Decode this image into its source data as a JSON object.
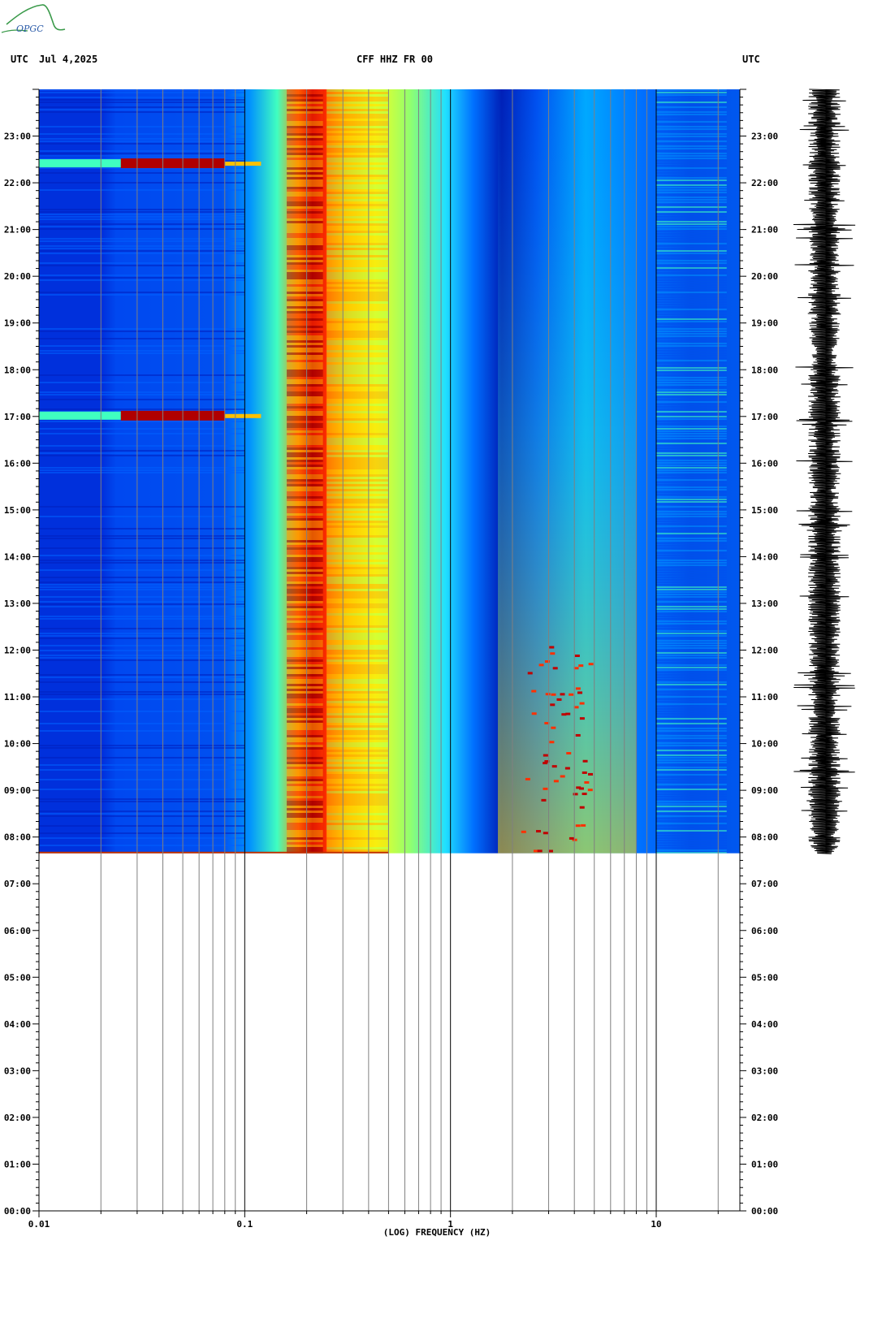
{
  "header": {
    "left_tz": "UTC",
    "date": "Jul 4,2025",
    "station": "CFF HHZ FR 00",
    "right_tz": "UTC"
  },
  "logo": {
    "text": "OPGC"
  },
  "chart_data": {
    "type": "heatmap",
    "subtype": "spectrogram",
    "xlabel": "(LOG) FREQUENCY (HZ)",
    "x_scale": "log",
    "xlim": [
      0.01,
      25
    ],
    "x_tick_labels": [
      "0.01",
      "0.1",
      "1",
      "10"
    ],
    "x_major_ticks": [
      0.01,
      0.1,
      1,
      10
    ],
    "x_minor_ticks": [
      0.02,
      0.03,
      0.04,
      0.05,
      0.06,
      0.07,
      0.08,
      0.09,
      0.2,
      0.3,
      0.4,
      0.5,
      0.6,
      0.7,
      0.8,
      0.9,
      2,
      3,
      4,
      5,
      6,
      7,
      8,
      9,
      20
    ],
    "y_tick_labels": [
      "00:00",
      "01:00",
      "02:00",
      "03:00",
      "04:00",
      "05:00",
      "06:00",
      "07:00",
      "08:00",
      "09:00",
      "10:00",
      "11:00",
      "12:00",
      "13:00",
      "14:00",
      "15:00",
      "16:00",
      "17:00",
      "18:00",
      "19:00",
      "20:00",
      "21:00",
      "22:00",
      "23:00"
    ],
    "ylim_hours": [
      0,
      24
    ],
    "data_start_hour": 7.65,
    "colormap": [
      "#0000a0",
      "#0030e0",
      "#0080ff",
      "#00d0ff",
      "#40ffc0",
      "#c0ff40",
      "#ffff00",
      "#ffa000",
      "#ff3000",
      "#a00000"
    ],
    "features": [
      {
        "label": "microseism peak",
        "freq": 0.2,
        "level": "high"
      },
      {
        "label": "cultural noise band",
        "freq_range": [
          2,
          5
        ],
        "time_range": [
          7.65,
          13
        ],
        "level": "high"
      },
      {
        "label": "spectral lines",
        "freq_range": [
          10,
          20
        ],
        "level": "medium"
      },
      {
        "label": "long-period events",
        "hours": [
          22.4,
          17.0
        ],
        "freq_range": [
          0.01,
          0.1
        ]
      }
    ],
    "trace": {
      "label": "waveform",
      "time_range": [
        7.65,
        24
      ]
    }
  }
}
